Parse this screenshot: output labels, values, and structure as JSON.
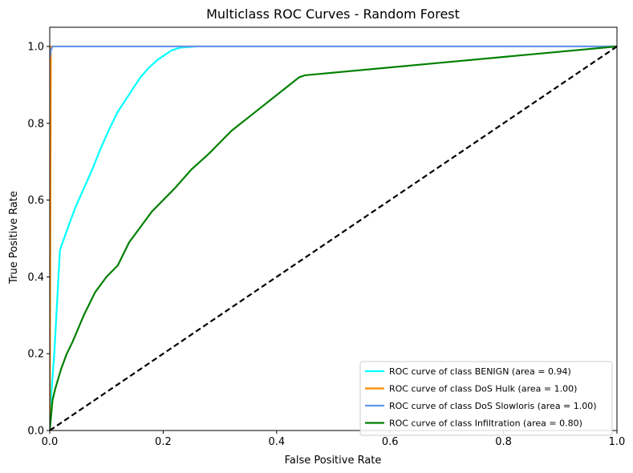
{
  "chart_data": {
    "type": "line",
    "title": "Multiclass ROC Curves - Random Forest",
    "xlabel": "False Positive Rate",
    "ylabel": "True Positive Rate",
    "xlim": [
      0.0,
      1.0
    ],
    "ylim": [
      0.0,
      1.05
    ],
    "xticks": [
      "0.0",
      "0.2",
      "0.4",
      "0.6",
      "0.8",
      "1.0"
    ],
    "yticks": [
      "0.0",
      "0.2",
      "0.4",
      "0.6",
      "0.8",
      "1.0"
    ],
    "grid": false,
    "legend_position": "lower-right",
    "series": [
      {
        "name": "ROC curve of class BENIGN (area = 0.94)",
        "color": "#00ffff",
        "x": [
          0.0,
          0.003,
          0.008,
          0.018,
          0.03,
          0.045,
          0.06,
          0.075,
          0.09,
          0.105,
          0.12,
          0.14,
          0.16,
          0.175,
          0.19,
          0.2,
          0.215,
          0.23,
          0.26,
          1.0
        ],
        "y": [
          0.0,
          0.1,
          0.2,
          0.47,
          0.52,
          0.58,
          0.63,
          0.68,
          0.735,
          0.785,
          0.83,
          0.875,
          0.92,
          0.945,
          0.965,
          0.975,
          0.99,
          0.997,
          1.0,
          1.0
        ]
      },
      {
        "name": "ROC curve of class DoS Hulk (area = 1.00)",
        "color": "#ff8c00",
        "x": [
          0.0,
          0.002,
          1.0
        ],
        "y": [
          0.0,
          1.0,
          1.0
        ]
      },
      {
        "name": "ROC curve of class DoS Slowloris (area = 1.00)",
        "color": "#6495ed",
        "x": [
          0.0,
          0.002,
          0.005,
          1.0
        ],
        "y": [
          0.97,
          0.99,
          1.0,
          1.0
        ]
      },
      {
        "name": "ROC curve of class Infiltration (area = 0.80)",
        "color": "#008000",
        "x": [
          0.0,
          0.005,
          0.01,
          0.02,
          0.03,
          0.04,
          0.06,
          0.08,
          0.1,
          0.12,
          0.14,
          0.16,
          0.18,
          0.2,
          0.22,
          0.25,
          0.28,
          0.32,
          0.38,
          0.44,
          0.45,
          1.0
        ],
        "y": [
          0.0,
          0.08,
          0.11,
          0.16,
          0.2,
          0.23,
          0.3,
          0.36,
          0.4,
          0.43,
          0.49,
          0.53,
          0.57,
          0.6,
          0.63,
          0.68,
          0.72,
          0.78,
          0.85,
          0.92,
          0.925,
          1.0
        ]
      },
      {
        "name": "",
        "color": "#000000",
        "style": "dashed",
        "x": [
          0.0,
          1.0
        ],
        "y": [
          0.0,
          1.0
        ]
      }
    ]
  }
}
